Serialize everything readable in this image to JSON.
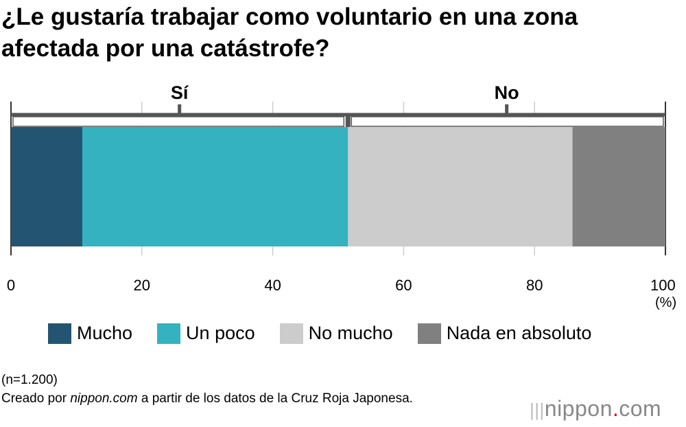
{
  "chart_data": {
    "type": "bar",
    "orientation": "horizontal-stacked",
    "title": "¿Le gustaría trabajar como voluntario en una zona afectada por una catástrofe?",
    "series": [
      {
        "name": "Mucho",
        "value": 10.9,
        "color": "#235572"
      },
      {
        "name": "Un poco",
        "value": 40.6,
        "color": "#34b2bf"
      },
      {
        "name": "No mucho",
        "value": 34.3,
        "color": "#cccccc"
      },
      {
        "name": "Nada en absoluto",
        "value": 14.2,
        "color": "#808080"
      }
    ],
    "groups": [
      {
        "label": "Sí",
        "range": [
          0,
          51.5
        ]
      },
      {
        "label": "No",
        "range": [
          51.5,
          100
        ]
      }
    ],
    "xlim": [
      0,
      100
    ],
    "xticks": [
      "0",
      "20",
      "40",
      "60",
      "80",
      "100"
    ],
    "xunit": "(%)",
    "grid": true,
    "legend": "bottom"
  },
  "notes": {
    "sample": "(n=1.200)",
    "source_pre": "Creado por ",
    "source_site": "nippon.com",
    "source_post": " a partir de los datos de la Cruz Roja Japonesa."
  },
  "logo": {
    "name": "nippon",
    "dot": ".",
    "suffix": "com"
  }
}
